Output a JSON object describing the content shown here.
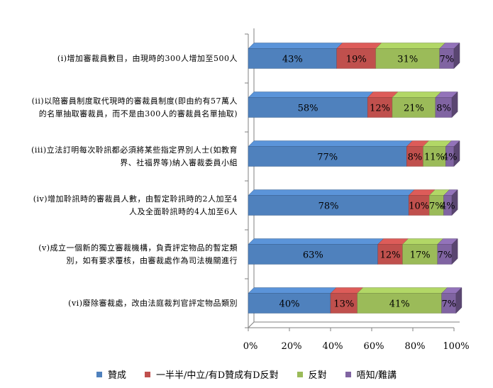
{
  "chart_data": {
    "type": "bar",
    "orientation": "horizontal",
    "stacked": true,
    "percent_stacked": true,
    "categories": [
      "(i)增加審裁員數目，由現時的300人增加至500人",
      "(ii)以陪審員制度取代現時的審裁員制度(即由約有57萬人的名單抽取審裁員，而不是由300人的審裁員名單抽取)",
      "(iii)立法訂明每次聆訊都必須將某些指定界別人士(如教育界、社福界等)納入審裁委員小組",
      "(iv)增加聆訊時的審裁員人數，由暫定聆訊時的2人加至4人及全面聆訊時的4人加至6人",
      "(v)成立一個新的獨立審裁機構，負責評定物品的暫定類別，如有要求覆核，由審裁處作為司法機關進行",
      "(vi)廢除審裁處，改由法庭裁判官評定物品類別"
    ],
    "category_lines": [
      [
        "(i)增加審裁員數目，由現時的300人增加至500人"
      ],
      [
        "(ii)以陪審員制度取代現時的審裁員制度(即由約有57萬人",
        "的名單抽取審裁員，而不是由300人的審裁員名單抽取)"
      ],
      [
        "(iii)立法訂明每次聆訊都必須將某些指定界別人士(如教育",
        "界、社福界等)納入審裁委員小組"
      ],
      [
        "(iv)增加聆訊時的審裁員人數，由暫定聆訊時的2人加至4",
        "人及全面聆訊時的4人加至6人"
      ],
      [
        "(v)成立一個新的獨立審裁機構，負責評定物品的暫定類",
        "別，如有要求覆核，由審裁處作為司法機關進行"
      ],
      [
        "(vi)廢除審裁處，改由法庭裁判官評定物品類別"
      ]
    ],
    "series": [
      {
        "name": "贊成",
        "color": "#4F81BD",
        "values": [
          43,
          58,
          77,
          78,
          63,
          40
        ]
      },
      {
        "name": "一半半/中立/有D贊成有D反對",
        "color": "#C0504D",
        "values": [
          19,
          12,
          8,
          10,
          12,
          13
        ]
      },
      {
        "name": "反對",
        "color": "#9BBB59",
        "values": [
          31,
          21,
          11,
          7,
          17,
          41
        ]
      },
      {
        "name": "唔知/難講",
        "color": "#8064A2",
        "values": [
          7,
          8,
          4,
          4,
          7,
          7
        ]
      }
    ],
    "data_labels": [
      [
        "43%",
        "19%",
        "31%",
        "7%"
      ],
      [
        "58%",
        "12%",
        "21%",
        "8%"
      ],
      [
        "77%",
        "8%",
        "11%",
        "4%"
      ],
      [
        "78%",
        "10%",
        "7%",
        "4%"
      ],
      [
        "63%",
        "12%",
        "17%",
        "7%"
      ],
      [
        "40%",
        "13%",
        "41%",
        "7%"
      ]
    ],
    "x_ticks": [
      "0%",
      "20%",
      "40%",
      "60%",
      "80%",
      "100%"
    ],
    "xlim": [
      0,
      100
    ],
    "grid": false,
    "legend_position": "bottom"
  }
}
